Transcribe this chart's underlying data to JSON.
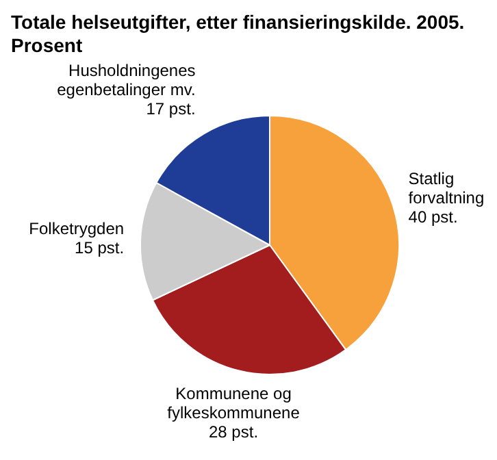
{
  "chart_data": {
    "type": "pie",
    "title": "Totale helseutgifter, etter finansieringskilde. 2005. Prosent",
    "categories": [
      "Statlig forvaltning",
      "Kommunene og fylkeskommunene",
      "Folketrygden",
      "Husholdningenes egenbetalinger mv."
    ],
    "values": [
      40,
      28,
      15,
      17
    ],
    "colors": [
      "#f7a13c",
      "#a31d1f",
      "#cccccc",
      "#1f3c96"
    ],
    "value_labels": [
      "40 pst.",
      "28 pst.",
      "15 pst.",
      "17 pst."
    ],
    "legend": false
  }
}
